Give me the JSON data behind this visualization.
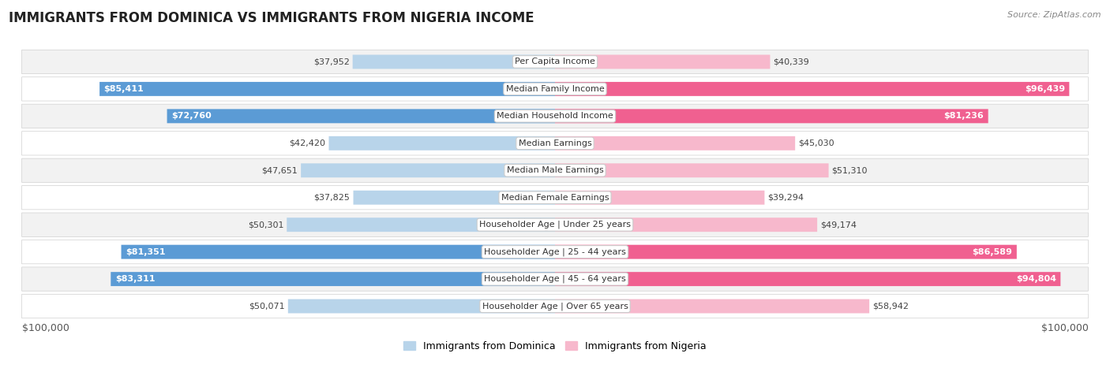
{
  "title": "IMMIGRANTS FROM DOMINICA VS IMMIGRANTS FROM NIGERIA INCOME",
  "source": "Source: ZipAtlas.com",
  "categories": [
    "Per Capita Income",
    "Median Family Income",
    "Median Household Income",
    "Median Earnings",
    "Median Male Earnings",
    "Median Female Earnings",
    "Householder Age | Under 25 years",
    "Householder Age | 25 - 44 years",
    "Householder Age | 45 - 64 years",
    "Householder Age | Over 65 years"
  ],
  "dominica_values": [
    37952,
    85411,
    72760,
    42420,
    47651,
    37825,
    50301,
    81351,
    83311,
    50071
  ],
  "nigeria_values": [
    40339,
    96439,
    81236,
    45030,
    51310,
    39294,
    49174,
    86589,
    94804,
    58942
  ],
  "dominica_labels": [
    "$37,952",
    "$85,411",
    "$72,760",
    "$42,420",
    "$47,651",
    "$37,825",
    "$50,301",
    "$81,351",
    "$83,311",
    "$50,071"
  ],
  "nigeria_labels": [
    "$40,339",
    "$96,439",
    "$81,236",
    "$45,030",
    "$51,310",
    "$39,294",
    "$49,174",
    "$86,589",
    "$94,804",
    "$58,942"
  ],
  "dominica_color_light": "#b8d4ea",
  "dominica_color_dark": "#5b9bd5",
  "nigeria_color_light": "#f7b8cc",
  "nigeria_color_dark": "#f06090",
  "dominica_highlight": [
    1,
    2,
    7,
    8
  ],
  "nigeria_highlight": [
    1,
    2,
    7,
    8
  ],
  "max_value": 100000,
  "xlabel_left": "$100,000",
  "xlabel_right": "$100,000",
  "legend_dominica": "Immigrants from Dominica",
  "legend_nigeria": "Immigrants from Nigeria",
  "bg_color": "#ffffff",
  "row_bg_even": "#f2f2f2",
  "row_bg_odd": "#ffffff",
  "title_fontsize": 12,
  "label_fontsize": 8,
  "category_fontsize": 8
}
